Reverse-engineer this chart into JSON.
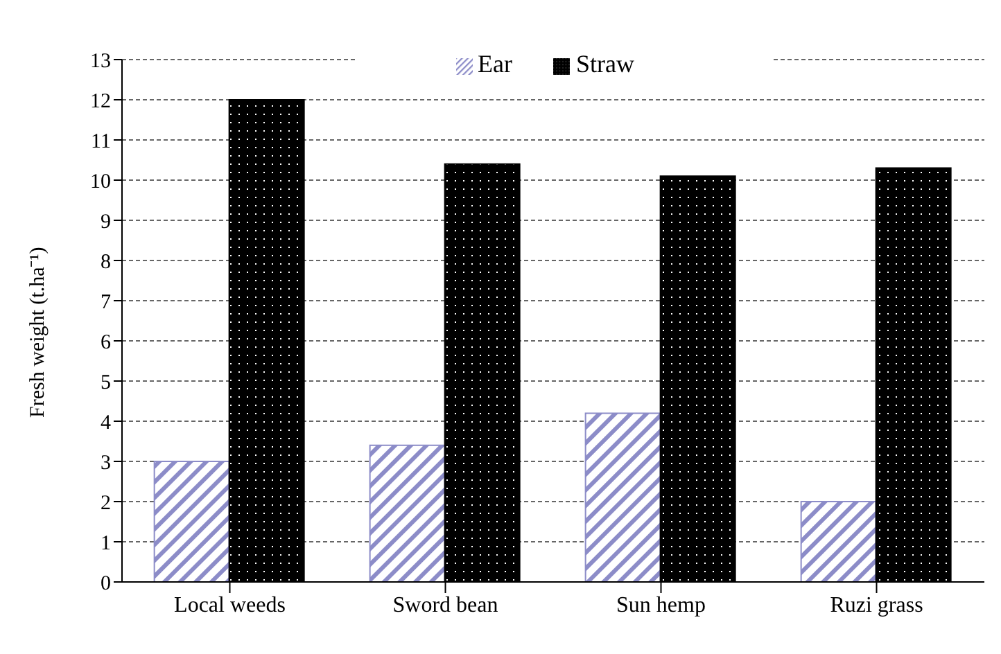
{
  "chart_data": {
    "type": "bar",
    "ylabel": "Fresh weight (t.ha⁻¹)",
    "categories": [
      "Local weeds",
      "Sword bean",
      "Sun hemp",
      "Ruzi grass"
    ],
    "series": [
      {
        "name": "Ear",
        "color": "#8c8cc8",
        "values": [
          3.0,
          3.4,
          4.2,
          2.0
        ]
      },
      {
        "name": "Straw",
        "color": "#000000",
        "values": [
          12.0,
          10.4,
          10.1,
          10.3
        ]
      }
    ],
    "ylim": [
      0,
      13
    ],
    "yticks": [
      0,
      1,
      2,
      3,
      4,
      5,
      6,
      7,
      8,
      9,
      10,
      11,
      12,
      13
    ],
    "grid": "y",
    "legend": "top"
  }
}
